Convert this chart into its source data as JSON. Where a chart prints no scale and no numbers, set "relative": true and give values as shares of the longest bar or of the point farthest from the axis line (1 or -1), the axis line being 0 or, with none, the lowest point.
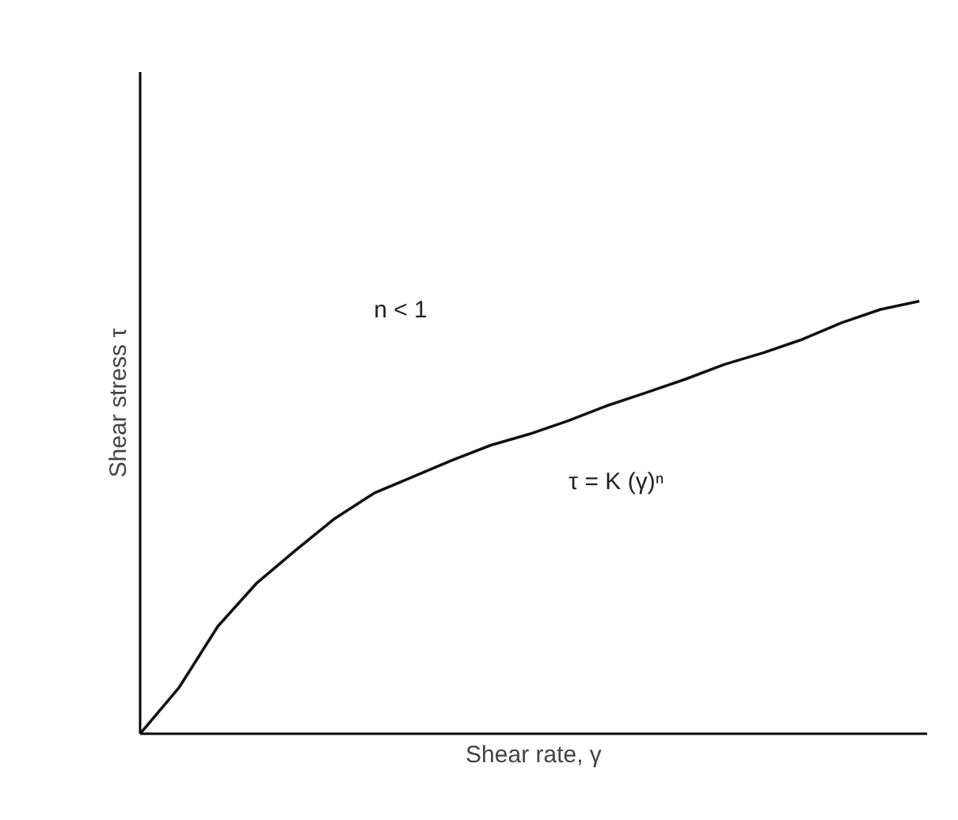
{
  "chart_data": {
    "type": "line",
    "relative": true,
    "xlabel": "Shear rate, γ",
    "ylabel": "Shear stress τ",
    "categories": [
      null,
      null,
      null,
      null,
      null,
      null,
      null,
      null,
      null,
      null,
      null,
      null,
      null,
      null,
      null,
      null,
      null,
      null,
      null,
      null,
      null
    ],
    "series": [
      {
        "color": "#111111",
        "values": [
          0,
          0.107,
          0.249,
          0.349,
          0.425,
          0.498,
          0.556,
          0.594,
          0.632,
          0.667,
          0.693,
          0.724,
          0.759,
          0.789,
          0.82,
          0.854,
          0.881,
          0.912,
          0.95,
          0.981,
          1
        ]
      }
    ],
    "annotations": [
      "n < 1",
      "τ = K (γ)ⁿ"
    ],
    "tick_labels": false,
    "marker": "none",
    "line_style": "solid"
  }
}
